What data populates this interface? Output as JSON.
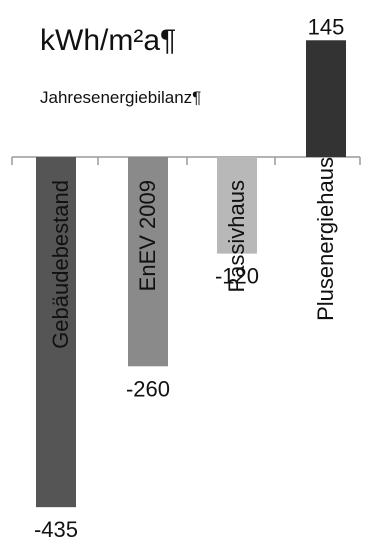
{
  "chart_data": {
    "type": "bar",
    "title": "kWh/m²a¶",
    "subtitle": "Jahresenergiebilanz¶",
    "categories": [
      "Gebäudebestand",
      "EnEV 2009",
      "Passivhaus",
      "Plusenergiehaus"
    ],
    "values": [
      -435,
      -260,
      -120,
      145
    ],
    "value_labels": [
      "-435",
      "-260",
      "-120",
      "145"
    ],
    "colors": [
      "#555555",
      "#8a8a8a",
      "#b8b8b8",
      "#333333"
    ],
    "ylim": [
      -435,
      145
    ],
    "grid": false,
    "legend": "none"
  }
}
